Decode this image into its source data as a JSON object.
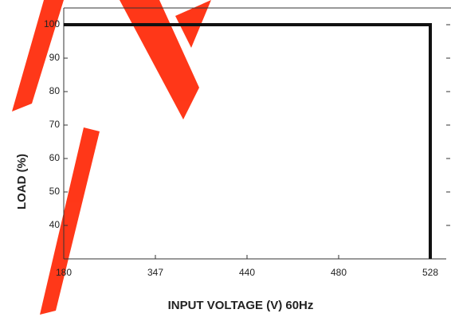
{
  "chart_data": {
    "type": "line",
    "x_label": "INPUT VOLTAGE (V) 60Hz",
    "y_label": "LOAD (%)",
    "xticks": [
      180,
      347,
      440,
      480,
      528
    ],
    "ylim": [
      30,
      105
    ],
    "yticks": [
      40,
      50,
      60,
      70,
      80,
      90,
      100
    ],
    "series": [
      {
        "color": "#111111",
        "x": [
          180,
          528,
          528
        ],
        "values": [
          100,
          100,
          30
        ]
      }
    ]
  }
}
